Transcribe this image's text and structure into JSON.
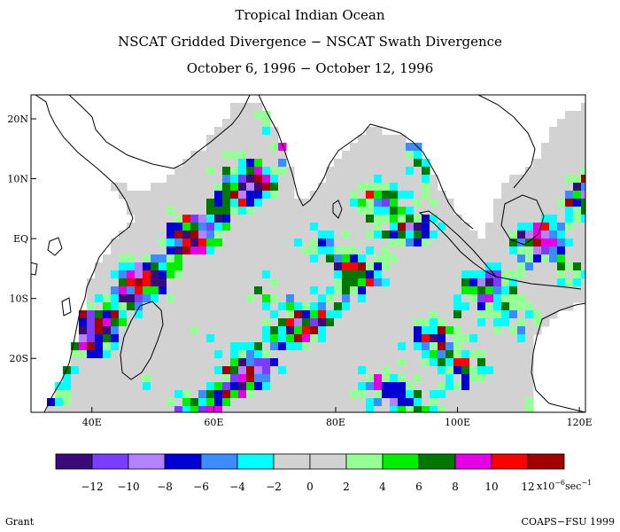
{
  "titles": {
    "line1": "Tropical Indian Ocean",
    "line2": "NSCAT Gridded Divergence − NSCAT Swath Divergence",
    "line3": "October 6, 1996 − October 12, 1996"
  },
  "map": {
    "lat_labels": [
      "20N",
      "10N",
      "EQ",
      "10S",
      "20S"
    ],
    "lat_values": [
      20,
      10,
      0,
      -10,
      -20
    ],
    "lon_labels": [
      "40E",
      "60E",
      "80E",
      "100E",
      "120E"
    ],
    "lon_values": [
      40,
      60,
      80,
      100,
      120
    ],
    "lon_range": [
      30,
      121
    ],
    "lat_range": [
      -29,
      24
    ]
  },
  "colorbar": {
    "colors": [
      "#3c0a78",
      "#7a3cff",
      "#b482ff",
      "#0000d2",
      "#3c8cff",
      "#00ffff",
      "#d2d2d2",
      "#d2d2d2",
      "#96ff96",
      "#00ee00",
      "#007800",
      "#e600e6",
      "#ff0000",
      "#a00000"
    ],
    "labels": [
      "−12",
      "−10",
      "−8",
      "−6",
      "−4",
      "−2",
      "0",
      "2",
      "4",
      "6",
      "8",
      "10",
      "12"
    ],
    "units_prefix": "x10",
    "units_exp": "−6",
    "units_suffix": "sec",
    "units_exp2": "−1"
  },
  "footer": {
    "left": "Grant",
    "right": "COAPS−FSU 1999"
  }
}
